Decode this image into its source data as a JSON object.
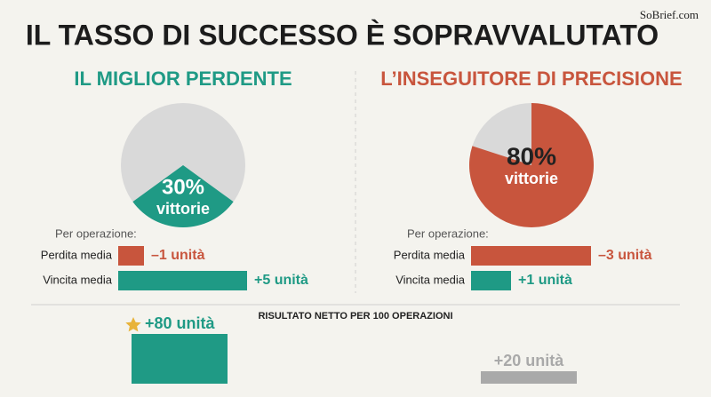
{
  "title": "IL TASSO DI SUCCESSO È SOPRAVVALUTATO",
  "watermark": "SoBrief.com",
  "net_heading": "RISULTATO NETTO PER 100 OPERAZIONI",
  "panels": [
    {
      "heading": "IL MIGLIOR PERDENTE",
      "color": "#1f9a85",
      "win_rate": 30,
      "win_rate_label": "30%",
      "win_caption": "vittorie",
      "per_op_label": "Per operazione:",
      "bars": [
        {
          "name": "Perdita media",
          "value": -1,
          "value_label": "–1 unità",
          "color": "#c8553d"
        },
        {
          "name": "Vincita media",
          "value": 5,
          "value_label": "+5 unità",
          "color": "#1f9a85"
        }
      ],
      "net": 80,
      "net_label": "+80 unità",
      "net_color": "#1f9a85"
    },
    {
      "heading": "L’INSEGUITORE DI PRECISIONE",
      "color": "#c8553d",
      "win_rate": 80,
      "win_rate_label": "80%",
      "win_caption": "vittorie",
      "per_op_label": "Per operazione:",
      "bars": [
        {
          "name": "Perdita media",
          "value": -3,
          "value_label": "–3 unità",
          "color": "#c8553d"
        },
        {
          "name": "Vincita media",
          "value": 1,
          "value_label": "+1 unità",
          "color": "#1f9a85"
        }
      ],
      "net": 20,
      "net_label": "+20 unità",
      "net_color": "#a9a9a9"
    }
  ]
}
